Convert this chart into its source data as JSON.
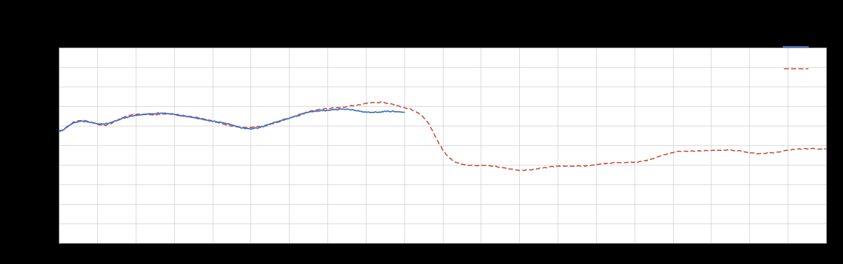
{
  "background_color": "#000000",
  "plot_bg_color": "#ffffff",
  "grid_color": "#cccccc",
  "line1_color": "#4472C4",
  "line2_color": "#C0392B",
  "figsize": [
    12.05,
    3.78
  ],
  "dpi": 100,
  "xlim": [
    0,
    100
  ],
  "ylim": [
    0,
    10
  ],
  "spine_color": "#888888"
}
